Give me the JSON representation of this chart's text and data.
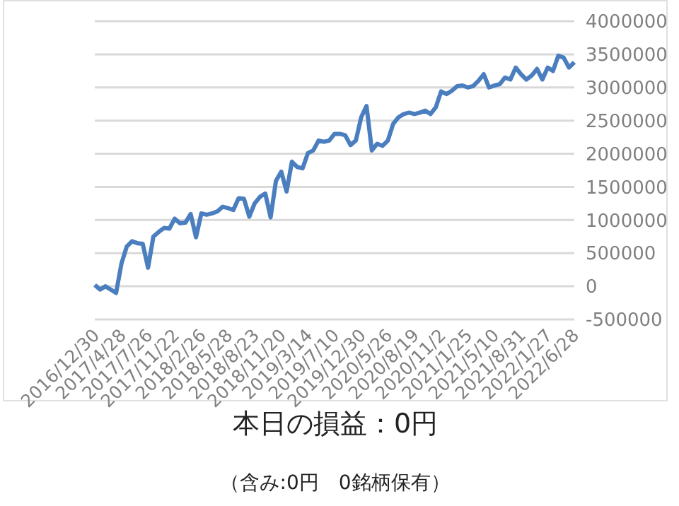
{
  "chart_data": {
    "type": "line",
    "title": "本日の損益：0円",
    "subtitle": "（含み:0円　0銘柄保有）",
    "categories": [
      "2016/12/30",
      null,
      null,
      null,
      null,
      "2017/4/28",
      null,
      null,
      null,
      null,
      "2017/7/26",
      null,
      null,
      null,
      null,
      "2017/11/22",
      null,
      null,
      null,
      null,
      "2018/2/26",
      null,
      null,
      null,
      null,
      "2018/5/28",
      null,
      null,
      null,
      null,
      "2018/8/23",
      null,
      null,
      null,
      null,
      "2018/11/20",
      null,
      null,
      null,
      null,
      "2019/3/14",
      null,
      null,
      null,
      null,
      "2019/7/10",
      null,
      null,
      null,
      null,
      "2019/12/30",
      null,
      null,
      null,
      null,
      "2020/5/26",
      null,
      null,
      null,
      null,
      "2020/8/19",
      null,
      null,
      null,
      null,
      "2020/11/2",
      null,
      null,
      null,
      null,
      "2021/1/25",
      null,
      null,
      null,
      null,
      "2021/5/10",
      null,
      null,
      null,
      null,
      "2021/8/31",
      null,
      null,
      null,
      null,
      "2022/1/27",
      null,
      null,
      null,
      null,
      "2022/6/28"
    ],
    "values": [
      20000,
      -50000,
      0,
      -50000,
      -100000,
      340000,
      600000,
      680000,
      650000,
      640000,
      280000,
      750000,
      820000,
      880000,
      870000,
      1020000,
      950000,
      960000,
      1090000,
      740000,
      1100000,
      1080000,
      1100000,
      1130000,
      1200000,
      1180000,
      1150000,
      1330000,
      1320000,
      1050000,
      1250000,
      1350000,
      1400000,
      1040000,
      1590000,
      1730000,
      1430000,
      1880000,
      1800000,
      1780000,
      2010000,
      2050000,
      2200000,
      2180000,
      2200000,
      2300000,
      2300000,
      2280000,
      2130000,
      2200000,
      2550000,
      2720000,
      2050000,
      2150000,
      2120000,
      2200000,
      2450000,
      2550000,
      2600000,
      2620000,
      2600000,
      2620000,
      2650000,
      2600000,
      2700000,
      2940000,
      2900000,
      2950000,
      3020000,
      3030000,
      3000000,
      3020000,
      3100000,
      3200000,
      3000000,
      3030000,
      3050000,
      3150000,
      3120000,
      3300000,
      3200000,
      3120000,
      3180000,
      3280000,
      3120000,
      3300000,
      3250000,
      3480000,
      3450000,
      3300000,
      3380000
    ],
    "color": "#4a7ebf",
    "ylim": [
      -500000,
      4000000
    ],
    "yticks": [
      -500000,
      0,
      500000,
      1000000,
      1500000,
      2000000,
      2500000,
      3000000,
      3500000,
      4000000
    ],
    "grid": "y"
  }
}
